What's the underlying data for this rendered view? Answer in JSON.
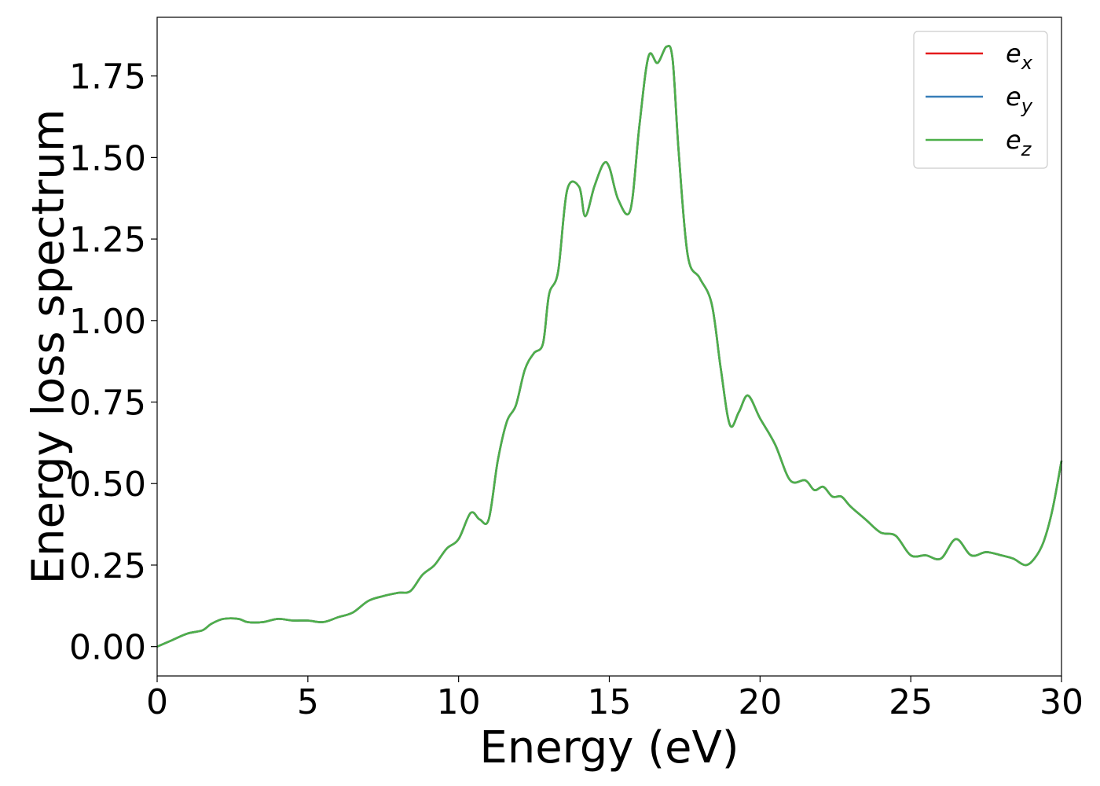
{
  "chart_data": {
    "type": "line",
    "title": "",
    "xlabel": "Energy (eV)",
    "ylabel": "Energy loss spectrum",
    "xlim": [
      0,
      30
    ],
    "ylim": [
      -0.09,
      1.93
    ],
    "xticks": [
      0,
      5,
      10,
      15,
      20,
      25,
      30
    ],
    "xtick_labels": [
      "0",
      "5",
      "10",
      "15",
      "20",
      "25",
      "30"
    ],
    "yticks": [
      0,
      0.25,
      0.5,
      0.75,
      1.0,
      1.25,
      1.5,
      1.75
    ],
    "ytick_labels": [
      "0.00",
      "0.25",
      "0.50",
      "0.75",
      "1.00",
      "1.25",
      "1.50",
      "1.75"
    ],
    "grid": false,
    "legend_position": "top-right",
    "x": [
      0,
      0.5,
      1.0,
      1.5,
      1.8,
      2.2,
      2.7,
      3.0,
      3.5,
      4.0,
      4.5,
      5.0,
      5.5,
      6.0,
      6.5,
      7.0,
      7.5,
      8.0,
      8.4,
      8.8,
      9.2,
      9.6,
      10.0,
      10.4,
      10.7,
      11.0,
      11.3,
      11.6,
      11.9,
      12.2,
      12.5,
      12.8,
      13.0,
      13.3,
      13.6,
      14.0,
      14.2,
      14.5,
      14.8,
      15.0,
      15.3,
      15.7,
      16.0,
      16.3,
      16.6,
      16.9,
      17.1,
      17.3,
      17.6,
      18.0,
      18.4,
      18.7,
      19.0,
      19.3,
      19.6,
      20.0,
      20.5,
      21.0,
      21.5,
      21.8,
      22.1,
      22.4,
      22.7,
      23.0,
      23.5,
      24.0,
      24.5,
      25.0,
      25.5,
      26.0,
      26.5,
      27.0,
      27.5,
      28.0,
      28.4,
      28.8,
      29.1,
      29.4,
      29.7,
      30.0
    ],
    "series": [
      {
        "name": "e_x",
        "color": "#e41a1c",
        "values": [
          0.0,
          0.02,
          0.04,
          0.05,
          0.07,
          0.085,
          0.085,
          0.075,
          0.075,
          0.085,
          0.08,
          0.08,
          0.075,
          0.09,
          0.105,
          0.14,
          0.155,
          0.165,
          0.17,
          0.22,
          0.25,
          0.3,
          0.33,
          0.41,
          0.39,
          0.39,
          0.57,
          0.69,
          0.74,
          0.85,
          0.9,
          0.93,
          1.08,
          1.15,
          1.4,
          1.41,
          1.32,
          1.41,
          1.48,
          1.47,
          1.37,
          1.34,
          1.6,
          1.81,
          1.79,
          1.84,
          1.8,
          1.52,
          1.2,
          1.13,
          1.05,
          0.85,
          0.68,
          0.72,
          0.77,
          0.7,
          0.62,
          0.51,
          0.51,
          0.48,
          0.49,
          0.46,
          0.46,
          0.43,
          0.39,
          0.35,
          0.34,
          0.28,
          0.28,
          0.27,
          0.33,
          0.28,
          0.29,
          0.28,
          0.27,
          0.25,
          0.27,
          0.32,
          0.42,
          0.57
        ]
      },
      {
        "name": "e_y",
        "color": "#377eb8",
        "values": [
          0.0,
          0.02,
          0.04,
          0.05,
          0.07,
          0.085,
          0.085,
          0.075,
          0.075,
          0.085,
          0.08,
          0.08,
          0.075,
          0.09,
          0.105,
          0.14,
          0.155,
          0.165,
          0.17,
          0.22,
          0.25,
          0.3,
          0.33,
          0.41,
          0.39,
          0.39,
          0.57,
          0.69,
          0.74,
          0.85,
          0.9,
          0.93,
          1.08,
          1.15,
          1.4,
          1.41,
          1.32,
          1.41,
          1.48,
          1.47,
          1.37,
          1.34,
          1.6,
          1.81,
          1.79,
          1.84,
          1.8,
          1.52,
          1.2,
          1.13,
          1.05,
          0.85,
          0.68,
          0.72,
          0.77,
          0.7,
          0.62,
          0.51,
          0.51,
          0.48,
          0.49,
          0.46,
          0.46,
          0.43,
          0.39,
          0.35,
          0.34,
          0.28,
          0.28,
          0.27,
          0.33,
          0.28,
          0.29,
          0.28,
          0.27,
          0.25,
          0.27,
          0.32,
          0.42,
          0.57
        ]
      },
      {
        "name": "e_z",
        "color": "#4daf4a",
        "values": [
          0.0,
          0.02,
          0.04,
          0.05,
          0.07,
          0.085,
          0.085,
          0.075,
          0.075,
          0.085,
          0.08,
          0.08,
          0.075,
          0.09,
          0.105,
          0.14,
          0.155,
          0.165,
          0.17,
          0.22,
          0.25,
          0.3,
          0.33,
          0.41,
          0.39,
          0.39,
          0.57,
          0.69,
          0.74,
          0.85,
          0.9,
          0.93,
          1.08,
          1.15,
          1.4,
          1.41,
          1.32,
          1.41,
          1.48,
          1.47,
          1.37,
          1.34,
          1.6,
          1.81,
          1.79,
          1.84,
          1.8,
          1.52,
          1.2,
          1.13,
          1.05,
          0.85,
          0.68,
          0.72,
          0.77,
          0.7,
          0.62,
          0.51,
          0.51,
          0.48,
          0.49,
          0.46,
          0.46,
          0.43,
          0.39,
          0.35,
          0.34,
          0.28,
          0.28,
          0.27,
          0.33,
          0.28,
          0.29,
          0.28,
          0.27,
          0.25,
          0.27,
          0.32,
          0.42,
          0.57
        ]
      }
    ],
    "legend": [
      {
        "base": "e",
        "sub": "x",
        "color": "#e41a1c"
      },
      {
        "base": "e",
        "sub": "y",
        "color": "#377eb8"
      },
      {
        "base": "e",
        "sub": "z",
        "color": "#4daf4a"
      }
    ]
  }
}
